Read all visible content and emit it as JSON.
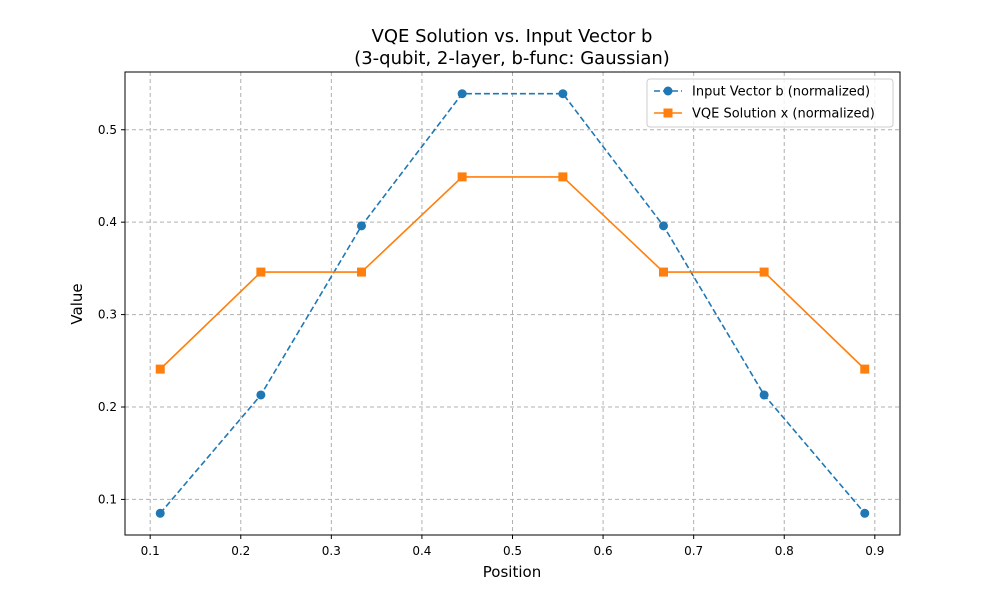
{
  "chart_data": {
    "type": "line",
    "title": "VQE Solution vs. Input Vector b",
    "subtitle": "(3-qubit, 2-layer, b-func: Gaussian)",
    "xlabel": "Position",
    "ylabel": "Value",
    "xlim": [
      0.0722,
      0.9278
    ],
    "ylim": [
      0.0615,
      0.5625
    ],
    "xticks": [
      0.1,
      0.2,
      0.3,
      0.4,
      0.5,
      0.6,
      0.7,
      0.8,
      0.9
    ],
    "xtick_labels": [
      "0.1",
      "0.2",
      "0.3",
      "0.4",
      "0.5",
      "0.6",
      "0.7",
      "0.8",
      "0.9"
    ],
    "yticks": [
      0.1,
      0.2,
      0.3,
      0.4,
      0.5
    ],
    "ytick_labels": [
      "0.1",
      "0.2",
      "0.3",
      "0.4",
      "0.5"
    ],
    "grid": true,
    "legend_position": "top-right",
    "x": [
      0.1111,
      0.2222,
      0.3333,
      0.4444,
      0.5556,
      0.6667,
      0.7778,
      0.8889
    ],
    "series": [
      {
        "name": "Input Vector b (normalized)",
        "values": [
          0.085,
          0.213,
          0.396,
          0.539,
          0.539,
          0.396,
          0.213,
          0.085
        ],
        "color": "#1f77b4",
        "linestyle": "dashed",
        "marker": "circle"
      },
      {
        "name": "VQE Solution x (normalized)",
        "values": [
          0.241,
          0.346,
          0.346,
          0.449,
          0.449,
          0.346,
          0.346,
          0.241
        ],
        "color": "#ff7f0e",
        "linestyle": "solid",
        "marker": "square"
      }
    ]
  }
}
